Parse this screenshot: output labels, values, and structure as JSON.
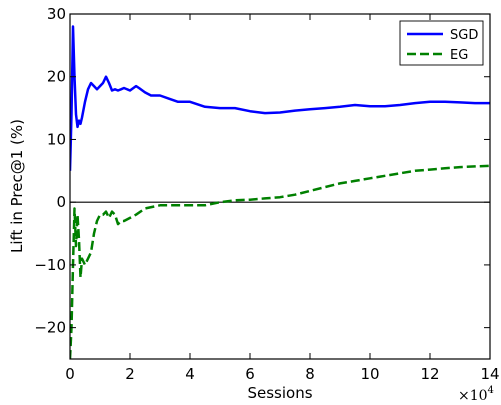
{
  "chart_data": {
    "type": "line",
    "xlabel": "Sessions",
    "ylabel": "Lift in Prec@1 (%)",
    "x_scale_label": "×10",
    "x_scale_exponent": "4",
    "xlim": [
      0,
      14
    ],
    "ylim": [
      -25,
      30
    ],
    "x_ticks": [
      0,
      2,
      4,
      6,
      8,
      10,
      12,
      14
    ],
    "y_ticks": [
      -20,
      -10,
      0,
      10,
      20,
      30
    ],
    "y_tick_labels": [
      "−20",
      "−10",
      "0",
      "10",
      "20",
      "30"
    ],
    "grid": false,
    "legend_position": "top-right",
    "reference_line_y": 0,
    "series": [
      {
        "name": "SGD",
        "color": "#0000ff",
        "style": "solid",
        "x": [
          0,
          0.05,
          0.1,
          0.15,
          0.2,
          0.25,
          0.3,
          0.35,
          0.4,
          0.5,
          0.6,
          0.7,
          0.8,
          0.9,
          1.0,
          1.1,
          1.2,
          1.3,
          1.4,
          1.5,
          1.6,
          1.7,
          1.8,
          2.0,
          2.2,
          2.3,
          2.5,
          2.7,
          3.0,
          3.3,
          3.6,
          4.0,
          4.5,
          5.0,
          5.5,
          6.0,
          6.5,
          7.0,
          7.5,
          8.0,
          8.5,
          9.0,
          9.5,
          10.0,
          10.5,
          11.0,
          11.5,
          12.0,
          12.5,
          13.0,
          13.5,
          14.0
        ],
        "values": [
          5,
          14,
          28,
          20,
          14,
          12,
          13,
          12.5,
          13.5,
          16,
          18,
          19,
          18.5,
          18,
          18.5,
          19,
          20,
          19,
          17.8,
          18,
          17.8,
          18,
          18.2,
          17.8,
          18.5,
          18.2,
          17.5,
          17,
          17,
          16.5,
          16,
          16,
          15.2,
          15,
          15,
          14.5,
          14.2,
          14.3,
          14.6,
          14.8,
          15,
          15.2,
          15.5,
          15.3,
          15.3,
          15.5,
          15.8,
          16,
          16,
          15.9,
          15.8,
          15.8
        ]
      },
      {
        "name": "EG",
        "color": "#008000",
        "style": "dashed",
        "x": [
          0,
          0.05,
          0.1,
          0.15,
          0.2,
          0.25,
          0.3,
          0.35,
          0.4,
          0.5,
          0.6,
          0.7,
          0.8,
          0.9,
          1.0,
          1.1,
          1.2,
          1.3,
          1.4,
          1.5,
          1.6,
          1.7,
          1.8,
          2.0,
          2.2,
          2.5,
          3.0,
          3.5,
          4.0,
          4.5,
          5.0,
          5.5,
          6.0,
          6.5,
          7.0,
          7.5,
          8.0,
          8.5,
          9.0,
          9.5,
          10.0,
          10.5,
          11.0,
          11.5,
          12.0,
          12.5,
          13.0,
          13.5,
          14.0
        ],
        "values": [
          -25,
          -20,
          -10,
          -1,
          -7,
          -2,
          -6,
          -12,
          -9,
          -10,
          -9,
          -8,
          -5,
          -3,
          -2,
          -2,
          -1.5,
          -2.5,
          -1.5,
          -2,
          -3.5,
          -3,
          -3,
          -2.5,
          -2,
          -1,
          -0.5,
          -0.5,
          -0.5,
          -0.5,
          0,
          0.3,
          0.4,
          0.6,
          0.8,
          1.2,
          1.8,
          2.4,
          3,
          3.4,
          3.8,
          4.2,
          4.6,
          5,
          5.2,
          5.4,
          5.6,
          5.7,
          5.8
        ]
      }
    ]
  }
}
